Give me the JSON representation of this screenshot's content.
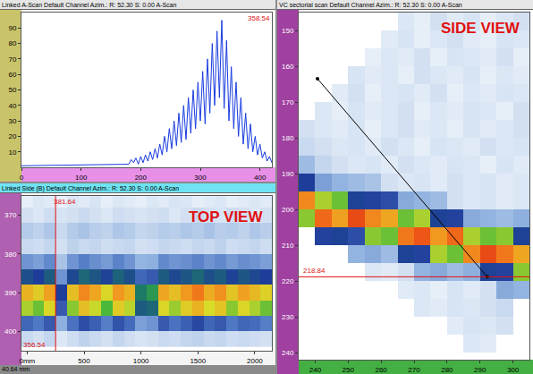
{
  "chart_data": [
    {
      "type": "line",
      "title": "Linked A-Scan Default Channel Azim.: R: 52.30 S: 0.00 A-Scan",
      "x": [
        0,
        160,
        180,
        184,
        188,
        192,
        196,
        200,
        204,
        208,
        212,
        216,
        220,
        224,
        228,
        232,
        236,
        240,
        244,
        248,
        252,
        256,
        260,
        264,
        268,
        272,
        276,
        280,
        284,
        288,
        292,
        296,
        300,
        304,
        308,
        312,
        316,
        320,
        324,
        328,
        332,
        336,
        340,
        344,
        348,
        352,
        356,
        360,
        364,
        368,
        372,
        376,
        380,
        384,
        388,
        392,
        396,
        400,
        404,
        408,
        412,
        416,
        420
      ],
      "values": [
        1,
        2,
        2,
        5,
        3,
        6,
        2,
        7,
        3,
        8,
        4,
        10,
        5,
        12,
        6,
        15,
        8,
        20,
        10,
        25,
        12,
        30,
        14,
        35,
        16,
        40,
        18,
        45,
        22,
        50,
        25,
        55,
        30,
        62,
        28,
        70,
        35,
        80,
        40,
        88,
        45,
        95,
        38,
        82,
        30,
        65,
        25,
        55,
        20,
        45,
        15,
        35,
        12,
        28,
        10,
        20,
        8,
        15,
        6,
        10,
        4,
        7,
        3
      ],
      "color": "#1a3ce0",
      "xlim": [
        0,
        420
      ],
      "xticks": [
        0,
        100,
        200,
        300,
        400
      ],
      "ylim": [
        0,
        100
      ],
      "yticks": [
        10,
        20,
        30,
        40,
        50,
        60,
        70,
        80,
        90
      ],
      "grid": false,
      "annotations": [
        {
          "text": "358.54"
        }
      ]
    },
    {
      "type": "heatmap",
      "title": "Linked Side (B) Default Channel Azim.: R: 52.30 S: 0.00 A-Scan",
      "x": [
        0,
        100,
        200,
        300,
        400,
        500,
        600,
        700,
        800,
        900,
        1000,
        1100,
        1200,
        1300,
        1400,
        1500,
        1600,
        1700,
        1800,
        1900,
        2000,
        2100
      ],
      "y": [
        366,
        370,
        374,
        378,
        382,
        386,
        390,
        394,
        398,
        402
      ],
      "z": [
        [
          8,
          10,
          9,
          7,
          10,
          9,
          11,
          8,
          10,
          9,
          8,
          10,
          9,
          11,
          10,
          8,
          9,
          10,
          8,
          9,
          10,
          9
        ],
        [
          12,
          10,
          13,
          11,
          12,
          14,
          12,
          10,
          13,
          12,
          11,
          12,
          13,
          10,
          12,
          14,
          12,
          11,
          13,
          12,
          10,
          12
        ],
        [
          18,
          16,
          19,
          14,
          18,
          20,
          17,
          16,
          19,
          18,
          15,
          16,
          18,
          17,
          19,
          18,
          20,
          17,
          18,
          16,
          19,
          17
        ],
        [
          14,
          13,
          15,
          12,
          16,
          14,
          15,
          13,
          14,
          15,
          12,
          13,
          15,
          14,
          13,
          15,
          14,
          16,
          13,
          14,
          15,
          13
        ],
        [
          30,
          28,
          32,
          20,
          30,
          34,
          31,
          29,
          33,
          30,
          24,
          25,
          32,
          30,
          31,
          33,
          30,
          32,
          29,
          31,
          30,
          28
        ],
        [
          48,
          45,
          50,
          30,
          47,
          52,
          49,
          46,
          51,
          48,
          38,
          40,
          50,
          47,
          49,
          52,
          48,
          50,
          46,
          49,
          47,
          45
        ],
        [
          82,
          78,
          85,
          45,
          80,
          88,
          84,
          76,
          86,
          82,
          55,
          60,
          84,
          80,
          86,
          90,
          83,
          87,
          79,
          85,
          81,
          77
        ],
        [
          72,
          68,
          76,
          40,
          70,
          80,
          74,
          66,
          78,
          73,
          50,
          52,
          76,
          71,
          78,
          82,
          75,
          79,
          70,
          76,
          72,
          68
        ],
        [
          38,
          35,
          40,
          25,
          36,
          42,
          39,
          34,
          41,
          37,
          28,
          30,
          40,
          36,
          39,
          43,
          38,
          40,
          35,
          38,
          37,
          34
        ],
        [
          14,
          12,
          15,
          10,
          13,
          16,
          14,
          12,
          15,
          13,
          11,
          12,
          14,
          13,
          15,
          16,
          14,
          15,
          13,
          14,
          13,
          12
        ]
      ],
      "zlim": [
        0,
        100
      ],
      "xlim": [
        -50,
        2150
      ],
      "xticks": [
        {
          "value": 0,
          "label": "0mm"
        },
        500,
        1000,
        1500,
        2000
      ],
      "ylim": [
        405,
        365
      ],
      "yticks": [
        370,
        380,
        390,
        400
      ],
      "cursor": {
        "x": 250
      },
      "annotations": [
        {
          "text": "TOP VIEW"
        },
        {
          "text": "381.64"
        },
        {
          "text": "356.54"
        }
      ]
    },
    {
      "type": "heatmap",
      "title": "VC sectorial scan Default Channel Azim.: R: 52.30 S: 0.00 A-Scan",
      "x": [
        237.5,
        242.5,
        247.5,
        252.5,
        257.5,
        262.5,
        267.5,
        272.5,
        277.5,
        282.5,
        287.5,
        292.5,
        297.5,
        302.5
      ],
      "y": [
        147.5,
        152.5,
        157.5,
        162.5,
        167.5,
        172.5,
        177.5,
        182.5,
        187.5,
        192.5,
        197.5,
        202.5,
        207.5,
        212.5,
        217.5,
        222.5,
        227.5,
        232.5,
        237.5
      ],
      "z": [
        [
          null,
          null,
          null,
          null,
          null,
          null,
          10,
          8,
          12,
          9,
          11,
          8,
          10,
          12
        ],
        [
          null,
          null,
          null,
          null,
          null,
          9,
          11,
          8,
          10,
          12,
          9,
          8,
          11,
          10
        ],
        [
          null,
          null,
          null,
          null,
          8,
          10,
          9,
          12,
          8,
          11,
          10,
          9,
          12,
          8
        ],
        [
          null,
          null,
          null,
          11,
          9,
          10,
          8,
          12,
          10,
          9,
          11,
          8,
          10,
          9
        ],
        [
          null,
          null,
          9,
          12,
          8,
          10,
          11,
          9,
          12,
          8,
          10,
          9,
          11,
          10
        ],
        [
          null,
          10,
          8,
          11,
          9,
          10,
          12,
          8,
          10,
          9,
          11,
          10,
          8,
          12
        ],
        [
          12,
          10,
          9,
          11,
          8,
          10,
          12,
          9,
          10,
          8,
          11,
          9,
          10,
          12
        ],
        [
          14,
          12,
          10,
          11,
          9,
          12,
          10,
          8,
          11,
          10,
          9,
          12,
          10,
          11
        ],
        [
          22,
          15,
          12,
          10,
          11,
          9,
          12,
          10,
          9,
          11,
          10,
          8,
          11,
          9
        ],
        [
          45,
          28,
          24,
          22,
          20,
          12,
          10,
          11,
          9,
          12,
          10,
          11,
          9,
          10
        ],
        [
          88,
          72,
          68,
          46,
          44,
          42,
          26,
          24,
          22,
          12,
          10,
          11,
          9,
          10
        ],
        [
          70,
          92,
          85,
          95,
          88,
          84,
          68,
          72,
          46,
          44,
          26,
          24,
          22,
          25
        ],
        [
          null,
          44,
          46,
          42,
          70,
          68,
          90,
          94,
          86,
          92,
          72,
          68,
          70,
          46
        ],
        [
          null,
          null,
          null,
          24,
          26,
          22,
          46,
          44,
          72,
          68,
          88,
          95,
          90,
          84
        ],
        [
          null,
          null,
          null,
          null,
          10,
          9,
          12,
          24,
          26,
          22,
          25,
          46,
          44,
          70
        ],
        [
          null,
          null,
          null,
          null,
          null,
          null,
          9,
          10,
          8,
          11,
          9,
          12,
          26,
          24
        ],
        [
          null,
          null,
          null,
          null,
          null,
          null,
          null,
          10,
          9,
          11,
          10,
          12,
          14,
          null
        ],
        [
          null,
          null,
          null,
          null,
          null,
          null,
          null,
          null,
          null,
          9,
          11,
          10,
          12,
          null
        ],
        [
          null,
          null,
          null,
          null,
          null,
          null,
          null,
          null,
          null,
          null,
          10,
          9,
          null,
          null
        ]
      ],
      "zlim": [
        0,
        100
      ],
      "xlim": [
        235,
        305
      ],
      "xticks": [
        240,
        250,
        260,
        270,
        280,
        290,
        300
      ],
      "ylim": [
        242,
        145
      ],
      "yticks": [
        150,
        160,
        170,
        180,
        190,
        200,
        210,
        220,
        230,
        240
      ],
      "cursor": {
        "y": 218.84,
        "label": "218.84"
      },
      "cursor_line": {
        "x": [
          240.7,
          292.2
        ],
        "y": [
          163.5,
          218.84
        ]
      },
      "annotations": [
        {
          "text": "SIDE VIEW"
        }
      ]
    }
  ],
  "footer": "40.64 mm"
}
